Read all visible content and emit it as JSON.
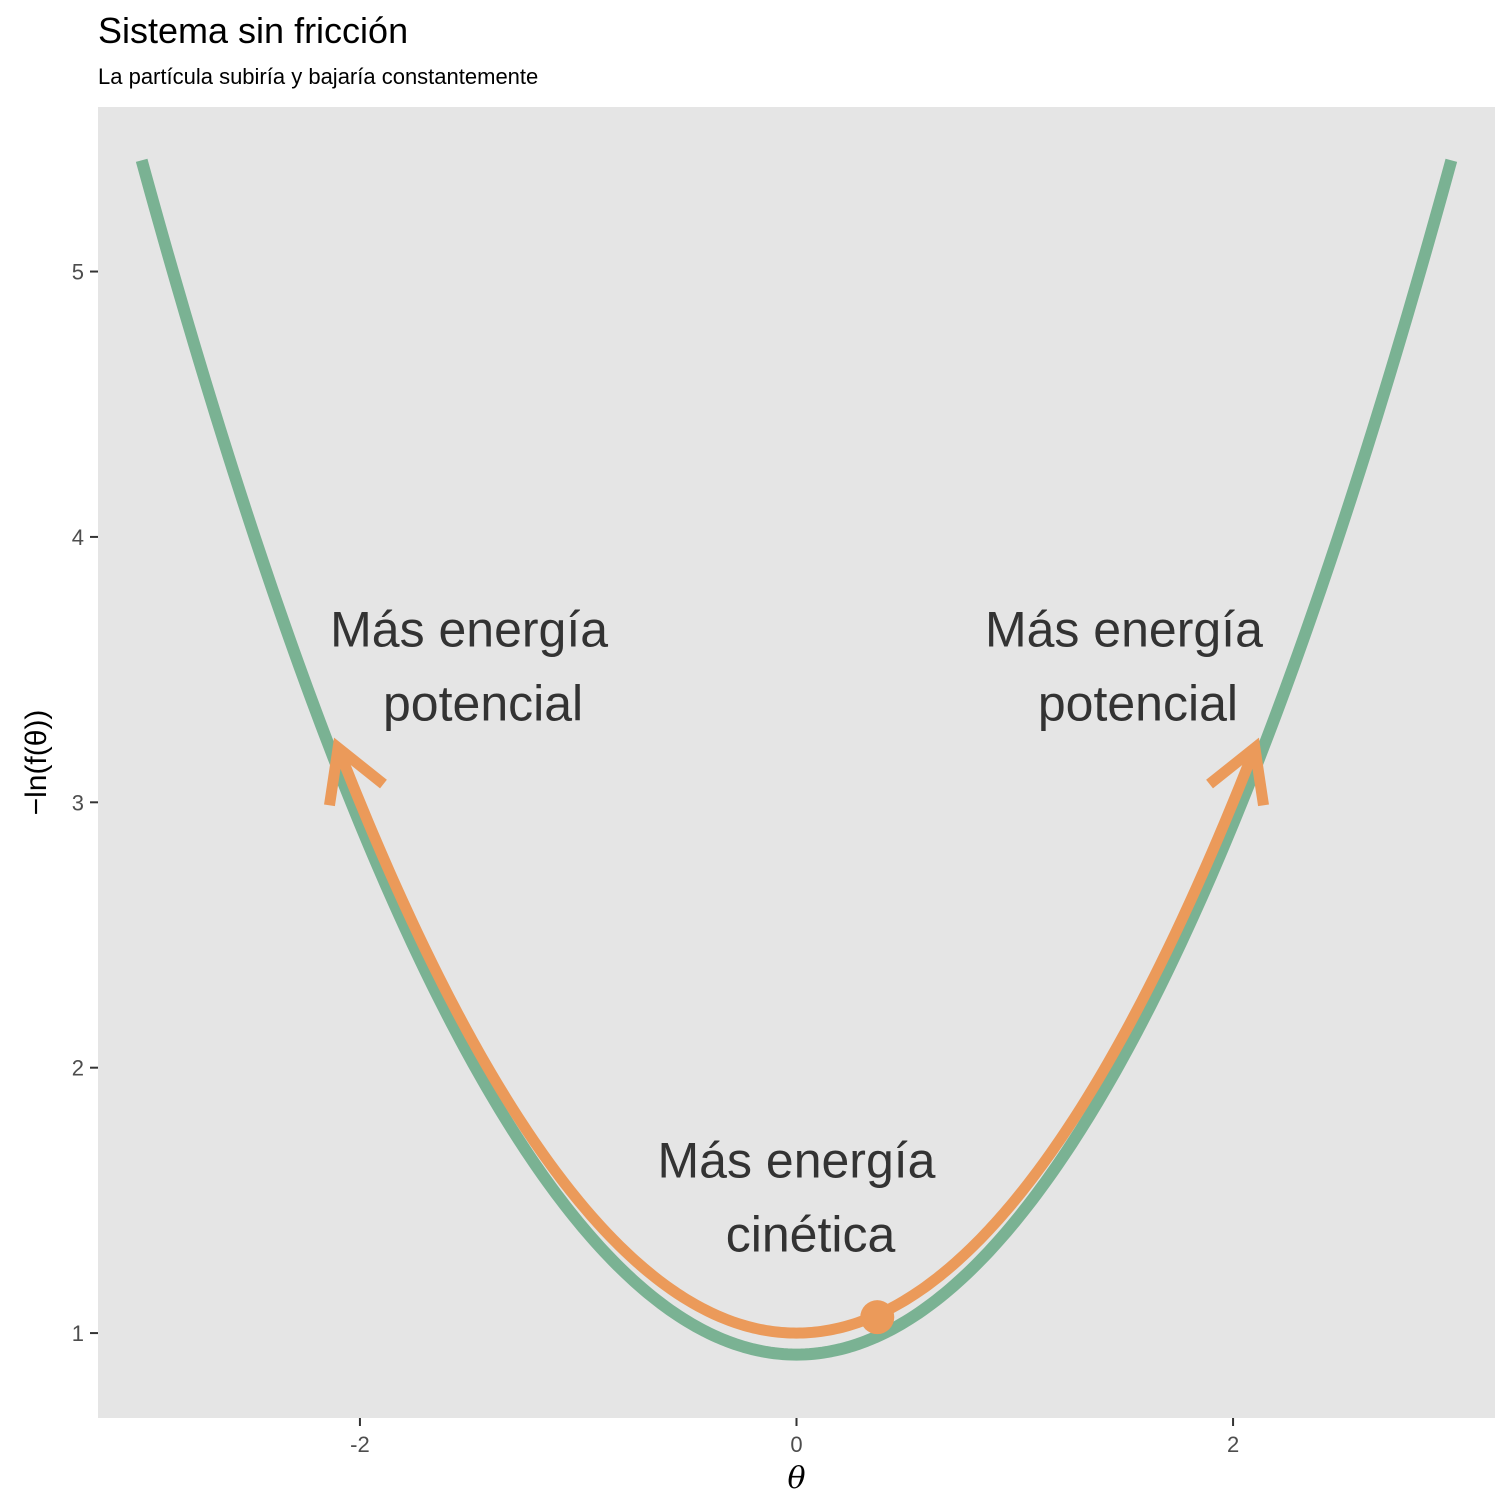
{
  "chart_data": {
    "type": "line",
    "title": "Sistema sin fricción",
    "subtitle": "La partícula subiría y bajaría constantemente",
    "xlabel": "θ",
    "ylabel": "−ln(f(θ))",
    "xlim": [
      -3.2,
      3.2
    ],
    "ylim": [
      0.68,
      5.62
    ],
    "x_ticks": [
      -2,
      0,
      2
    ],
    "x_tick_labels": [
      "-2",
      "0",
      "2"
    ],
    "y_ticks": [
      1,
      2,
      3,
      4,
      5
    ],
    "y_tick_labels": [
      "1",
      "2",
      "3",
      "4",
      "5"
    ],
    "grid": false,
    "panel_background": "#e5e5e5",
    "potential_curve": {
      "color": "#7ab293",
      "formula": "0.919 + x^2/2",
      "x": [
        -3.0,
        -2.5,
        -2.0,
        -1.5,
        -1.0,
        -0.5,
        0.0,
        0.5,
        1.0,
        1.5,
        2.0,
        2.5,
        3.0
      ],
      "y": [
        5.42,
        4.04,
        2.92,
        2.04,
        1.42,
        1.04,
        0.92,
        1.04,
        1.42,
        2.04,
        2.92,
        4.04,
        5.42
      ]
    },
    "particle_path": {
      "color": "#eb9a5a",
      "formula": "1 + x^2/2",
      "x_range": [
        -2.1,
        2.1
      ],
      "x": [
        -2.1,
        -1.5,
        -1.0,
        -0.5,
        0.0,
        0.5,
        1.0,
        1.5,
        2.1
      ],
      "y": [
        3.2,
        2.13,
        1.5,
        1.13,
        1.0,
        1.13,
        1.5,
        2.13,
        3.2
      ],
      "arrows": "both ends"
    },
    "particle": {
      "x": 0.37,
      "y": 1.06,
      "color": "#eb9a5a"
    },
    "annotations": [
      {
        "lines": [
          "Más energía",
          "potencial"
        ],
        "x": -1.5,
        "y": 3.5
      },
      {
        "lines": [
          "Más energía",
          "potencial"
        ],
        "x": 1.5,
        "y": 3.5
      },
      {
        "lines": [
          "Más energía",
          "cinética"
        ],
        "x": 0.0,
        "y": 1.5
      }
    ]
  }
}
